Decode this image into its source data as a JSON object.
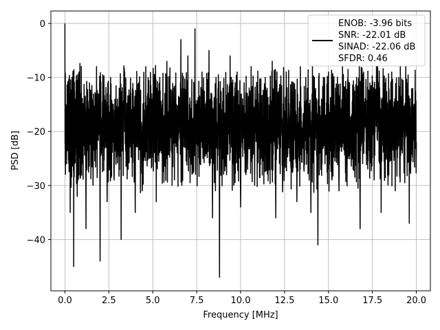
{
  "chart_data": {
    "type": "line",
    "title": "",
    "xlabel": "Frequency [MHz]",
    "ylabel": "PSD [dB]",
    "xlim": [
      -0.8,
      20.8
    ],
    "ylim": [
      -49.5,
      2.3
    ],
    "x_ticks": [
      0.0,
      2.5,
      5.0,
      7.5,
      10.0,
      12.5,
      15.0,
      17.5,
      20.0
    ],
    "x_tick_labels": [
      "0.0",
      "2.5",
      "5.0",
      "7.5",
      "10.0",
      "12.5",
      "15.0",
      "17.5",
      "20.0"
    ],
    "y_ticks": [
      0,
      -10,
      -20,
      -30,
      -40
    ],
    "y_tick_labels": [
      "0",
      "−10",
      "−20",
      "−30",
      "−40"
    ],
    "grid": true,
    "legend_position": "top-right",
    "legend_entries": [
      "ENOB: -3.96 bits",
      "SNR: -22.01 dB",
      "SINAD: -22.06 dB",
      "SFDR: 0.46"
    ],
    "series": [
      {
        "color": "#000000",
        "x": [
          0.0,
          0.1,
          0.2,
          0.3,
          0.4,
          0.5,
          0.6,
          0.7,
          0.8,
          0.9,
          1.0,
          1.2,
          1.4,
          1.6,
          1.8,
          2.0,
          2.2,
          2.4,
          2.6,
          2.8,
          3.0,
          3.2,
          3.4,
          3.6,
          3.8,
          4.0,
          4.2,
          4.4,
          4.6,
          4.8,
          5.0,
          5.2,
          5.4,
          5.6,
          5.8,
          6.0,
          6.2,
          6.4,
          6.6,
          6.8,
          7.0,
          7.2,
          7.4,
          7.6,
          7.8,
          8.0,
          8.2,
          8.4,
          8.6,
          8.8,
          9.0,
          9.2,
          9.4,
          9.6,
          9.8,
          10.0,
          10.2,
          10.4,
          10.6,
          10.8,
          11.0,
          11.2,
          11.4,
          11.6,
          11.8,
          12.0,
          12.2,
          12.4,
          12.6,
          12.8,
          13.0,
          13.2,
          13.4,
          13.6,
          13.8,
          14.0,
          14.2,
          14.4,
          14.6,
          14.8,
          15.0,
          15.2,
          15.4,
          15.6,
          15.8,
          16.0,
          16.2,
          16.4,
          16.6,
          16.8,
          17.0,
          17.2,
          17.4,
          17.6,
          17.8,
          18.0,
          18.2,
          18.4,
          18.6,
          18.8,
          19.0,
          19.2,
          19.4,
          19.6,
          19.8,
          20.0
        ],
        "y": [
          0,
          -26,
          -12,
          -35,
          -10,
          -45,
          -14,
          -32,
          -9,
          -28,
          -18,
          -38,
          -11,
          -30,
          -8,
          -44,
          -12,
          -33,
          -10,
          -29,
          -14,
          -40,
          -9,
          -27,
          -16,
          -35,
          -11,
          -31,
          -8,
          -25,
          -13,
          -33,
          -10,
          -22,
          -7,
          -19,
          -12,
          -24,
          -3,
          -14,
          -6,
          -20,
          -1,
          -17,
          -9,
          -23,
          -5,
          -36,
          -10,
          -47,
          -12,
          -28,
          -6,
          -24,
          -9,
          -34,
          -11,
          -27,
          -8,
          -30,
          -13,
          -24,
          -10,
          -26,
          -7,
          -36,
          -12,
          -29,
          -9,
          -24,
          -11,
          -33,
          -8,
          -27,
          -12,
          -35,
          -10,
          -41,
          -14,
          -26,
          -9,
          -29,
          -12,
          -31,
          -8,
          -22,
          -11,
          -27,
          -10,
          -38,
          -9,
          -25,
          -12,
          -29,
          -8,
          -35,
          -11,
          -27,
          -9,
          -31,
          -10,
          -24,
          -8,
          -37,
          -12,
          -22
        ]
      }
    ]
  }
}
